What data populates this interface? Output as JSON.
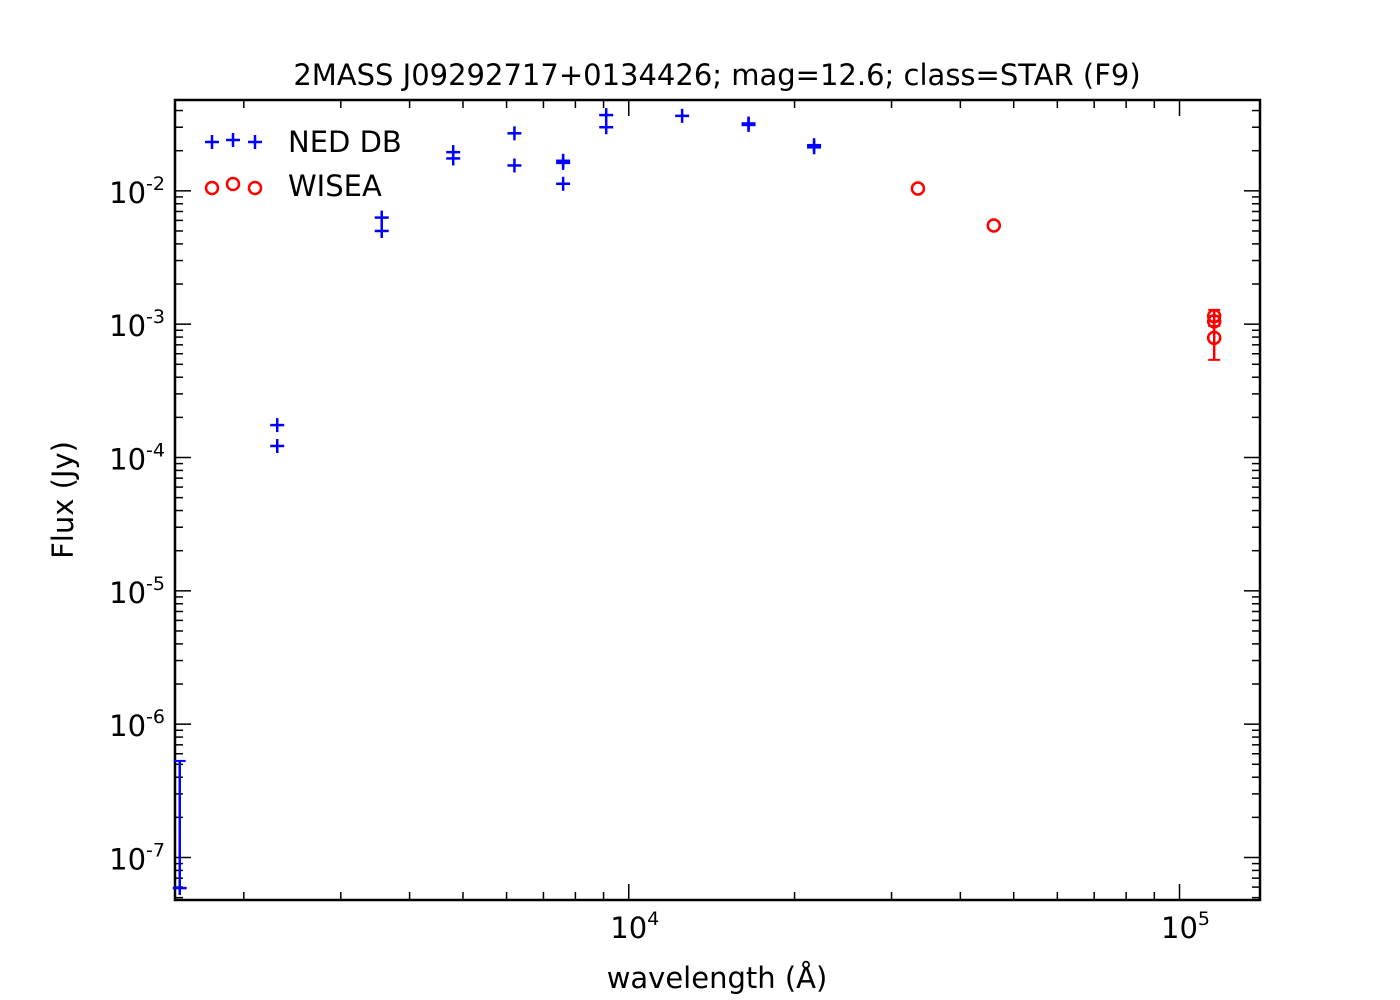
{
  "chart_data": {
    "type": "scatter",
    "title": "2MASS J09292717+0134426; mag=12.6; class=STAR (F9)",
    "xlabel": "wavelength (Å)",
    "ylabel": "Flux (Jy)",
    "x_scale": "log",
    "y_scale": "log",
    "xlim": [
      1500,
      140000
    ],
    "ylim": [
      4.8e-08,
      0.048
    ],
    "x_ticks": [
      {
        "value": 10000,
        "base": "10",
        "exp": "4"
      },
      {
        "value": 100000,
        "base": "10",
        "exp": "5"
      }
    ],
    "y_ticks": [
      {
        "value": 0.01,
        "base": "10",
        "exp": "-2"
      },
      {
        "value": 0.001,
        "base": "10",
        "exp": "-3"
      },
      {
        "value": 0.0001,
        "base": "10",
        "exp": "-4"
      },
      {
        "value": 1e-05,
        "base": "10",
        "exp": "-5"
      },
      {
        "value": 1e-06,
        "base": "10",
        "exp": "-6"
      },
      {
        "value": 1e-07,
        "base": "10",
        "exp": "-7"
      }
    ],
    "grid": false,
    "legend_position": "top-left",
    "series": [
      {
        "name": "NED DB",
        "marker": "plus",
        "color": "#0000ff",
        "points": [
          {
            "x": 1530,
            "y": 5.9e-08,
            "yerr_low": 5.9e-08,
            "yerr_high": 5.3e-07
          },
          {
            "x": 2300,
            "y": 0.000175
          },
          {
            "x": 2300,
            "y": 0.000122
          },
          {
            "x": 3560,
            "y": 0.0063
          },
          {
            "x": 3560,
            "y": 0.005
          },
          {
            "x": 4800,
            "y": 0.0195
          },
          {
            "x": 4800,
            "y": 0.0175
          },
          {
            "x": 6200,
            "y": 0.027
          },
          {
            "x": 6200,
            "y": 0.0155
          },
          {
            "x": 7600,
            "y": 0.0168
          },
          {
            "x": 7600,
            "y": 0.0162
          },
          {
            "x": 7600,
            "y": 0.0113
          },
          {
            "x": 9100,
            "y": 0.037
          },
          {
            "x": 9100,
            "y": 0.03
          },
          {
            "x": 12500,
            "y": 0.0365
          },
          {
            "x": 16500,
            "y": 0.032
          },
          {
            "x": 16500,
            "y": 0.0312
          },
          {
            "x": 21700,
            "y": 0.022
          },
          {
            "x": 21700,
            "y": 0.0212
          }
        ]
      },
      {
        "name": "WISEA",
        "marker": "circle",
        "color": "#ff0000",
        "points": [
          {
            "x": 33500,
            "y": 0.0104
          },
          {
            "x": 46000,
            "y": 0.0055
          },
          {
            "x": 115600,
            "y": 0.00115,
            "yerr_low": 0.00105,
            "yerr_high": 0.00128
          },
          {
            "x": 115600,
            "y": 0.00105,
            "yerr_low": 0.00097,
            "yerr_high": 0.00115
          },
          {
            "x": 115600,
            "y": 0.00079,
            "yerr_low": 0.00054,
            "yerr_high": 0.00105
          }
        ]
      }
    ]
  }
}
